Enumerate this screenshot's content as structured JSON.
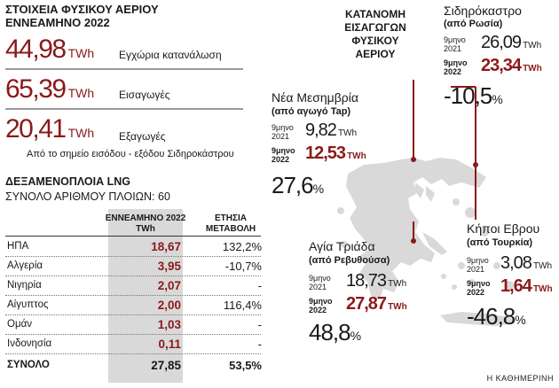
{
  "stats": {
    "title_line1": "ΣΤΟΙΧΕΙΑ ΦΥΣΙΚΟΥ ΑΕΡΙΟΥ",
    "title_line2": "ΕΝΝΕΑΜΗΝΟ 2022",
    "items": [
      {
        "value": "44,98",
        "unit": "TWh",
        "label": "Εγχώρια κατανάλωση"
      },
      {
        "value": "65,39",
        "unit": "TWh",
        "label": "Εισαγωγές"
      },
      {
        "value": "20,41",
        "unit": "TWh",
        "label": "Εξαγωγές"
      }
    ],
    "note": "Από το σημείο εισόδου - εξόδου Σιδηροκάστρου"
  },
  "lng": {
    "title": "ΔΕΞΑΜΕΝΟΠΛΟΙΑ LNG",
    "subtitle": "ΣΥΝΟΛΟ ΑΡΙΘΜΟΥ ΠΛΟΙΩΝ: 60",
    "col1_line1": "ΕΝΝΕΑΜΗΝΟ 2022",
    "col1_line2": "TWh",
    "col2_line1": "ΕΤΗΣΙΑ",
    "col2_line2": "ΜΕΤΑΒΟΛΗ",
    "rows": [
      {
        "country": "ΗΠΑ",
        "value": "18,67",
        "change": "132,2%"
      },
      {
        "country": "Αλγερία",
        "value": "3,95",
        "change": "-10,7%"
      },
      {
        "country": "Νιγηρία",
        "value": "2,07",
        "change": "-"
      },
      {
        "country": "Αίγυπτος",
        "value": "2,00",
        "change": "116,4%"
      },
      {
        "country": "Ομάν",
        "value": "1,03",
        "change": "-"
      },
      {
        "country": "Ινδονησία",
        "value": "0,11",
        "change": "-"
      }
    ],
    "total": {
      "country": "ΣΥΝΟΛΟ",
      "value": "27,85",
      "change": "53,5%"
    }
  },
  "map": {
    "title_line1": "ΚΑΤΑΝΟΜΗ",
    "title_line2": "ΕΙΣΑΓΩΓΩΝ",
    "title_line3": "ΦΥΣΙΚΟΥ",
    "title_line4": "ΑΕΡΙΟΥ",
    "period_a_line1": "9μηνο",
    "period_a_line2": "2021",
    "period_b_line1": "9μηνο",
    "period_b_line2": "2022",
    "unit": "TWh",
    "pct_sign": "%",
    "sidirokastro": {
      "name": "Σιδηρόκαστρο",
      "sub": "(από Ρωσία)",
      "v2021": "26,09",
      "v2022": "23,34",
      "pct": "-10,5"
    },
    "mesimvria": {
      "name": "Νέα Μεσημβρία",
      "sub": "(από αγωγό Tap)",
      "v2021": "9,82",
      "v2022": "12,53",
      "pct": "27,6"
    },
    "agia_triada": {
      "name": "Αγία Τριάδα",
      "sub": "(από Ρεβυθούσα)",
      "v2021": "18,73",
      "v2022": "27,87",
      "pct": "48,8"
    },
    "kipoi": {
      "name": "Κήποι Εβρου",
      "sub": "(από Τουρκία)",
      "v2021": "3,08",
      "v2022": "1,64",
      "pct": "-46,8"
    }
  },
  "credit": "Η ΚΑΘΗΜΕΡΙΝΗ",
  "colors": {
    "accent": "#8b1a1a",
    "map_fill": "#d9d9d9",
    "table_shade": "#d9d9d9"
  }
}
